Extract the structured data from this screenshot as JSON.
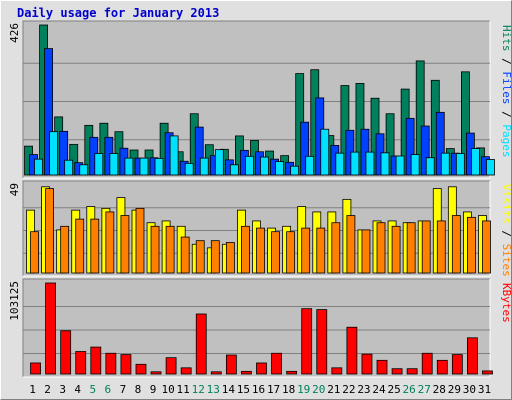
{
  "title": "Daily usage for January 2013",
  "colors": {
    "background": "#e0e0e0",
    "plot_bg": "#c0c0c0",
    "title": "#0000cc",
    "hits": "#00805c",
    "files": "#0040ff",
    "pages": "#00e0ff",
    "visits": "#ffff00",
    "sites": "#ff8000",
    "kbytes": "#ff0000",
    "weekend_label": "#00805c",
    "gridline": "#808080"
  },
  "chart_data": [
    {
      "type": "bar",
      "panel": "top",
      "ymax_label": "426",
      "ylim": [
        0,
        426
      ],
      "legend": [
        {
          "name": "Pages",
          "color": "#00e0ff"
        },
        {
          "name": "Files",
          "color": "#0040ff"
        },
        {
          "name": "Hits",
          "color": "#00805c"
        }
      ],
      "categories": [
        "1",
        "2",
        "3",
        "4",
        "5",
        "6",
        "7",
        "8",
        "9",
        "10",
        "11",
        "12",
        "13",
        "14",
        "15",
        "16",
        "17",
        "18",
        "19",
        "20",
        "21",
        "22",
        "23",
        "24",
        "25",
        "26",
        "27",
        "28",
        "29",
        "30",
        "31"
      ],
      "series": [
        {
          "name": "Hits",
          "values": [
            82,
            426,
            165,
            87,
            141,
            147,
            123,
            71,
            71,
            147,
            66,
            174,
            86,
            73,
            111,
            98,
            68,
            55,
            288,
            299,
            112,
            254,
            260,
            218,
            174,
            244,
            324,
            269,
            75,
            293,
            77
          ]
        },
        {
          "name": "Files",
          "values": [
            58,
            359,
            124,
            35,
            107,
            107,
            76,
            48,
            49,
            120,
            39,
            136,
            55,
            43,
            70,
            66,
            45,
            36,
            150,
            219,
            84,
            127,
            130,
            117,
            54,
            161,
            139,
            178,
            62,
            119,
            52
          ]
        },
        {
          "name": "Pages",
          "values": [
            45,
            123,
            42,
            29,
            61,
            61,
            48,
            48,
            47,
            111,
            33,
            48,
            72,
            29,
            53,
            51,
            38,
            25,
            53,
            130,
            62,
            65,
            65,
            63,
            54,
            58,
            49,
            62,
            61,
            75,
            44
          ]
        }
      ]
    },
    {
      "type": "bar",
      "panel": "middle",
      "ymax_label": "49",
      "ylim": [
        0,
        49
      ],
      "legend": [
        {
          "name": "Sites",
          "color": "#ff8000"
        },
        {
          "name": "Visits",
          "color": "#ffff00"
        }
      ],
      "categories": [
        "1",
        "2",
        "3",
        "4",
        "5",
        "6",
        "7",
        "8",
        "9",
        "10",
        "11",
        "12",
        "13",
        "14",
        "15",
        "16",
        "17",
        "18",
        "19",
        "20",
        "21",
        "22",
        "23",
        "24",
        "25",
        "26",
        "27",
        "28",
        "29",
        "30",
        "31"
      ],
      "series": [
        {
          "name": "Visits",
          "values": [
            35,
            48,
            24,
            35,
            37,
            36,
            42,
            35,
            28,
            29,
            26,
            16,
            14,
            16,
            35,
            29,
            25,
            26,
            37,
            34,
            34,
            41,
            24,
            29,
            29,
            28,
            29,
            47,
            48,
            34,
            32
          ]
        },
        {
          "name": "Sites",
          "values": [
            23,
            47,
            26,
            30,
            30,
            34,
            32,
            36,
            26,
            26,
            20,
            18,
            18,
            17,
            26,
            25,
            23,
            23,
            25,
            25,
            28,
            32,
            24,
            28,
            26,
            28,
            29,
            29,
            32,
            31,
            29
          ]
        }
      ]
    },
    {
      "type": "bar",
      "panel": "bottom",
      "ymax_label": "103125",
      "ylim": [
        0,
        103125
      ],
      "legend": [
        {
          "name": "KBytes",
          "color": "#ff0000"
        }
      ],
      "categories": [
        "1",
        "2",
        "3",
        "4",
        "5",
        "6",
        "7",
        "8",
        "9",
        "10",
        "11",
        "12",
        "13",
        "14",
        "15",
        "16",
        "17",
        "18",
        "19",
        "20",
        "21",
        "22",
        "23",
        "24",
        "25",
        "26",
        "27",
        "28",
        "29",
        "30",
        "31"
      ],
      "series": [
        {
          "name": "KBytes",
          "values": [
            12500,
            103125,
            49000,
            25500,
            30500,
            23500,
            22000,
            11000,
            2500,
            18500,
            7000,
            68000,
            2500,
            21500,
            3000,
            12500,
            23500,
            3000,
            74000,
            73000,
            7000,
            53000,
            22500,
            15500,
            6000,
            6000,
            23500,
            15500,
            22000,
            41000,
            3500
          ]
        }
      ]
    }
  ],
  "weekend_days": [
    5,
    6,
    12,
    13,
    19,
    20,
    26,
    27
  ]
}
